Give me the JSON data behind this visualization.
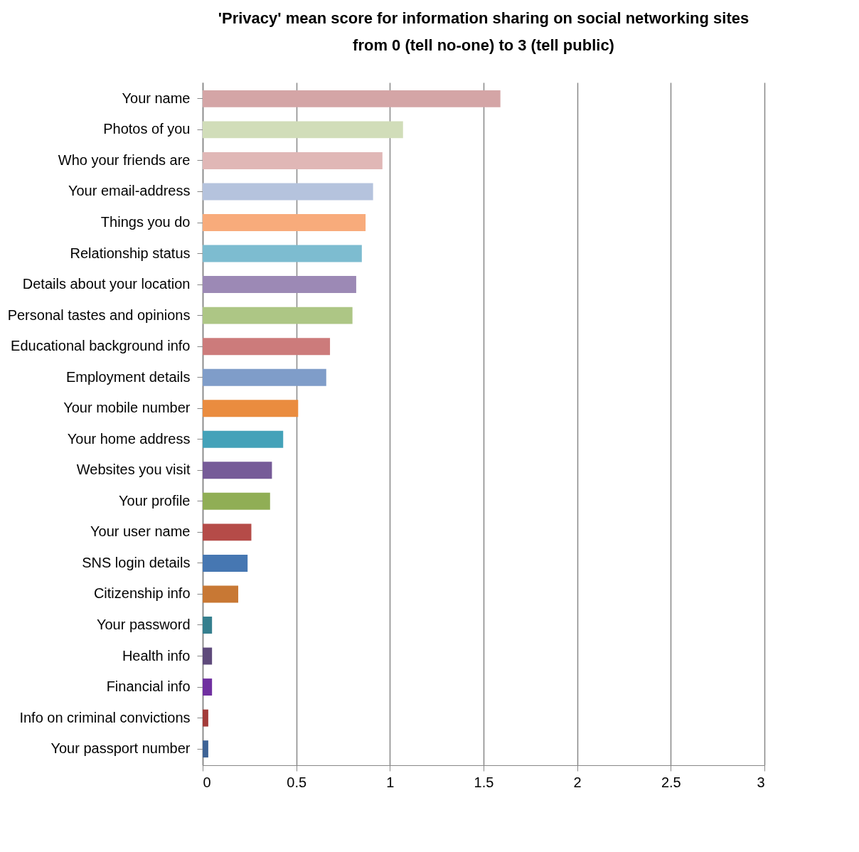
{
  "chart_data": {
    "type": "bar",
    "orientation": "horizontal",
    "title": "'Privacy' mean score for information sharing on social networking sites\nfrom 0 (tell no-one) to 3 (tell public)",
    "categories": [
      "Your name",
      "Photos of you",
      "Who your friends are",
      "Your email-address",
      "Things you do",
      "Relationship status",
      "Details about your location",
      "Personal tastes and opinions",
      "Educational background info",
      "Employment details",
      "Your mobile number",
      "Your home address",
      "Websites you visit",
      "Your profile",
      "Your user name",
      "SNS login details",
      "Citizenship info",
      "Your password",
      "Health info",
      "Financial info",
      "Info on criminal convictions",
      "Your passport number"
    ],
    "values": [
      1.59,
      1.07,
      0.96,
      0.91,
      0.87,
      0.85,
      0.82,
      0.8,
      0.68,
      0.66,
      0.51,
      0.43,
      0.37,
      0.36,
      0.26,
      0.24,
      0.19,
      0.05,
      0.05,
      0.05,
      0.03,
      0.03
    ],
    "colors": [
      "#d4a5a6",
      "#d1ddb9",
      "#e0b7b6",
      "#b5c3dd",
      "#f8ab7b",
      "#7dbcd0",
      "#9c89b5",
      "#adc685",
      "#cc7b7b",
      "#7f9dc9",
      "#ea8c3f",
      "#44a2b9",
      "#765b98",
      "#90ae55",
      "#b54b48",
      "#4677b2",
      "#c87834",
      "#357f8e",
      "#5e4a7b",
      "#7030a0",
      "#a33c3a",
      "#3e6396"
    ],
    "xlim": [
      0,
      3
    ],
    "xticks": [
      0,
      0.5,
      1,
      1.5,
      2,
      2.5,
      3
    ],
    "grid": "x",
    "legend": false
  }
}
